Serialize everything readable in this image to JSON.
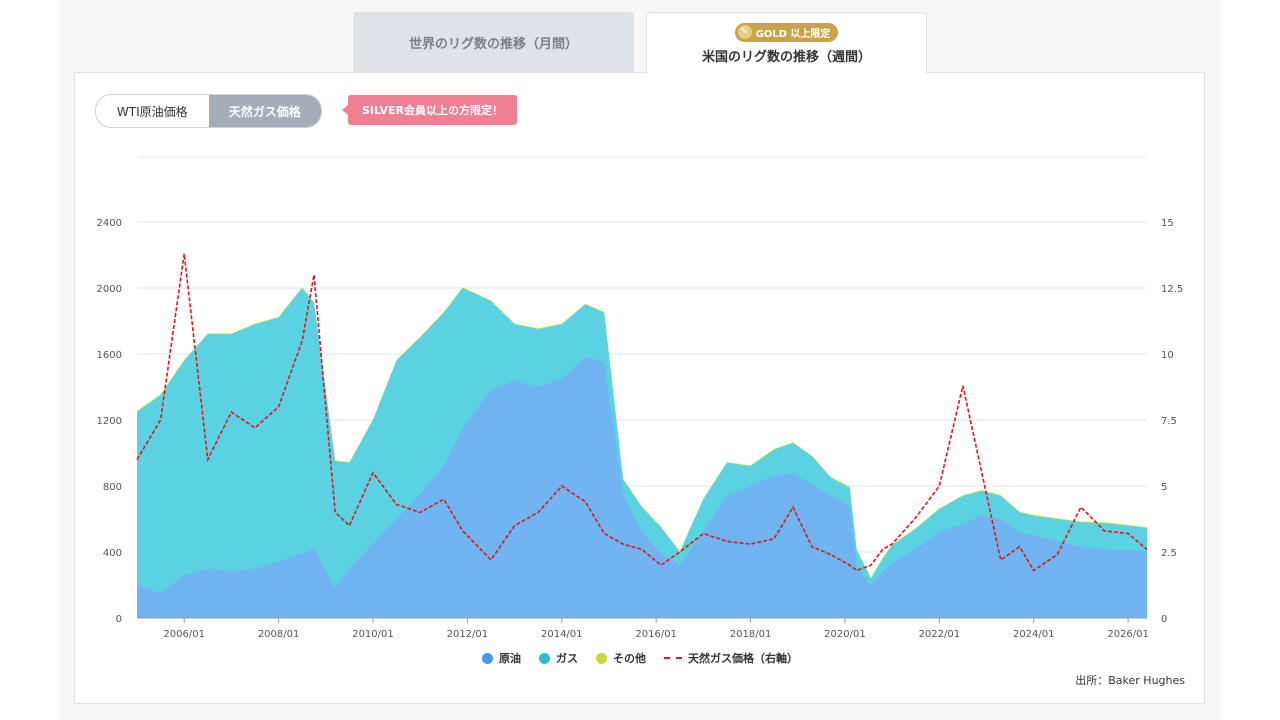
{
  "tabs": [
    {
      "label": "世界のリグ数の推移（月間）",
      "active": false
    },
    {
      "label": "米国のリグ数の推移（週間）",
      "active": true,
      "badge": "GOLD 以上限定"
    }
  ],
  "toggle": {
    "options": [
      "WTI原油価格",
      "天然ガス価格"
    ],
    "selected": "天然ガス価格"
  },
  "silver_badge": "SILVER会員以上の方限定！",
  "source": "出所：Baker Hughes",
  "colors": {
    "oil": "#70b5f2",
    "gas": "#5bd2e1",
    "other": "#d5e24a",
    "price": "#e0161b",
    "gold": "#c9a34a",
    "silver_badge": "#f07f92"
  },
  "chart_data": {
    "type": "area",
    "x_ticks": [
      "2006/01",
      "2008/01",
      "2010/01",
      "2012/01",
      "2014/01",
      "2016/01",
      "2018/01",
      "2020/01",
      "2022/01",
      "2024/01",
      "2026/01"
    ],
    "ylim_left": [
      0,
      2400
    ],
    "ylim_right": [
      0,
      15
    ],
    "y_left_ticks": [
      0,
      400,
      800,
      1200,
      1600,
      2000,
      2400
    ],
    "y_right_ticks": [
      "0",
      "2.5",
      "5",
      "7.5",
      "10",
      "12.5",
      "15"
    ],
    "grid": true,
    "legend_position": "bottom",
    "x": [
      2005.0,
      2005.5,
      2006.0,
      2006.5,
      2007.0,
      2007.5,
      2008.0,
      2008.5,
      2008.75,
      2009.2,
      2009.5,
      2010.0,
      2010.5,
      2011.0,
      2011.5,
      2011.9,
      2012.5,
      2013.0,
      2013.5,
      2014.0,
      2014.5,
      2014.9,
      2015.3,
      2015.7,
      2016.1,
      2016.5,
      2017.0,
      2017.5,
      2018.0,
      2018.5,
      2018.9,
      2019.3,
      2019.7,
      2020.1,
      2020.25,
      2020.55,
      2020.8,
      2021.0,
      2021.5,
      2022.0,
      2022.5,
      2022.9,
      2023.3,
      2023.7,
      2024.0,
      2024.5,
      2025.0,
      2025.5,
      2026.0,
      2026.4
    ],
    "series": [
      {
        "name": "原油",
        "values": [
          200,
          150,
          260,
          300,
          280,
          300,
          340,
          390,
          420,
          180,
          300,
          450,
          600,
          750,
          920,
          1150,
          1380,
          1440,
          1400,
          1450,
          1580,
          1550,
          750,
          520,
          390,
          320,
          520,
          740,
          800,
          860,
          880,
          810,
          740,
          680,
          320,
          190,
          280,
          330,
          420,
          520,
          570,
          620,
          600,
          520,
          500,
          470,
          430,
          415,
          410,
          410
        ]
      },
      {
        "name": "ガス",
        "values": [
          1250,
          1350,
          1560,
          1720,
          1720,
          1780,
          1820,
          2000,
          1910,
          950,
          940,
          1200,
          1560,
          1700,
          1850,
          2000,
          1920,
          1780,
          1750,
          1780,
          1900,
          1850,
          840,
          670,
          550,
          400,
          720,
          940,
          920,
          1020,
          1060,
          980,
          850,
          790,
          410,
          240,
          360,
          440,
          540,
          660,
          740,
          770,
          740,
          640,
          620,
          600,
          580,
          575,
          560,
          545
        ]
      },
      {
        "name": "その他",
        "values": [
          1255,
          1355,
          1565,
          1725,
          1725,
          1785,
          1825,
          2005,
          1915,
          955,
          945,
          1205,
          1565,
          1705,
          1855,
          2005,
          1925,
          1785,
          1755,
          1785,
          1905,
          1855,
          845,
          675,
          555,
          405,
          725,
          945,
          925,
          1025,
          1065,
          985,
          855,
          795,
          415,
          245,
          365,
          445,
          545,
          665,
          745,
          775,
          745,
          645,
          625,
          605,
          585,
          580,
          565,
          550
        ]
      },
      {
        "name": "天然ガス価格（右軸）",
        "axis": "right",
        "values": [
          6.0,
          7.5,
          13.8,
          6.0,
          7.8,
          7.2,
          8.0,
          10.5,
          13.0,
          4.0,
          3.5,
          5.5,
          4.3,
          4.0,
          4.5,
          3.3,
          2.2,
          3.5,
          4.0,
          5.0,
          4.4,
          3.2,
          2.8,
          2.6,
          2.0,
          2.5,
          3.2,
          2.9,
          2.8,
          3.0,
          4.2,
          2.7,
          2.4,
          2.0,
          1.8,
          2.0,
          2.6,
          2.8,
          3.8,
          5.0,
          8.8,
          5.5,
          2.2,
          2.7,
          1.8,
          2.4,
          4.2,
          3.3,
          3.2,
          2.6
        ]
      }
    ]
  }
}
